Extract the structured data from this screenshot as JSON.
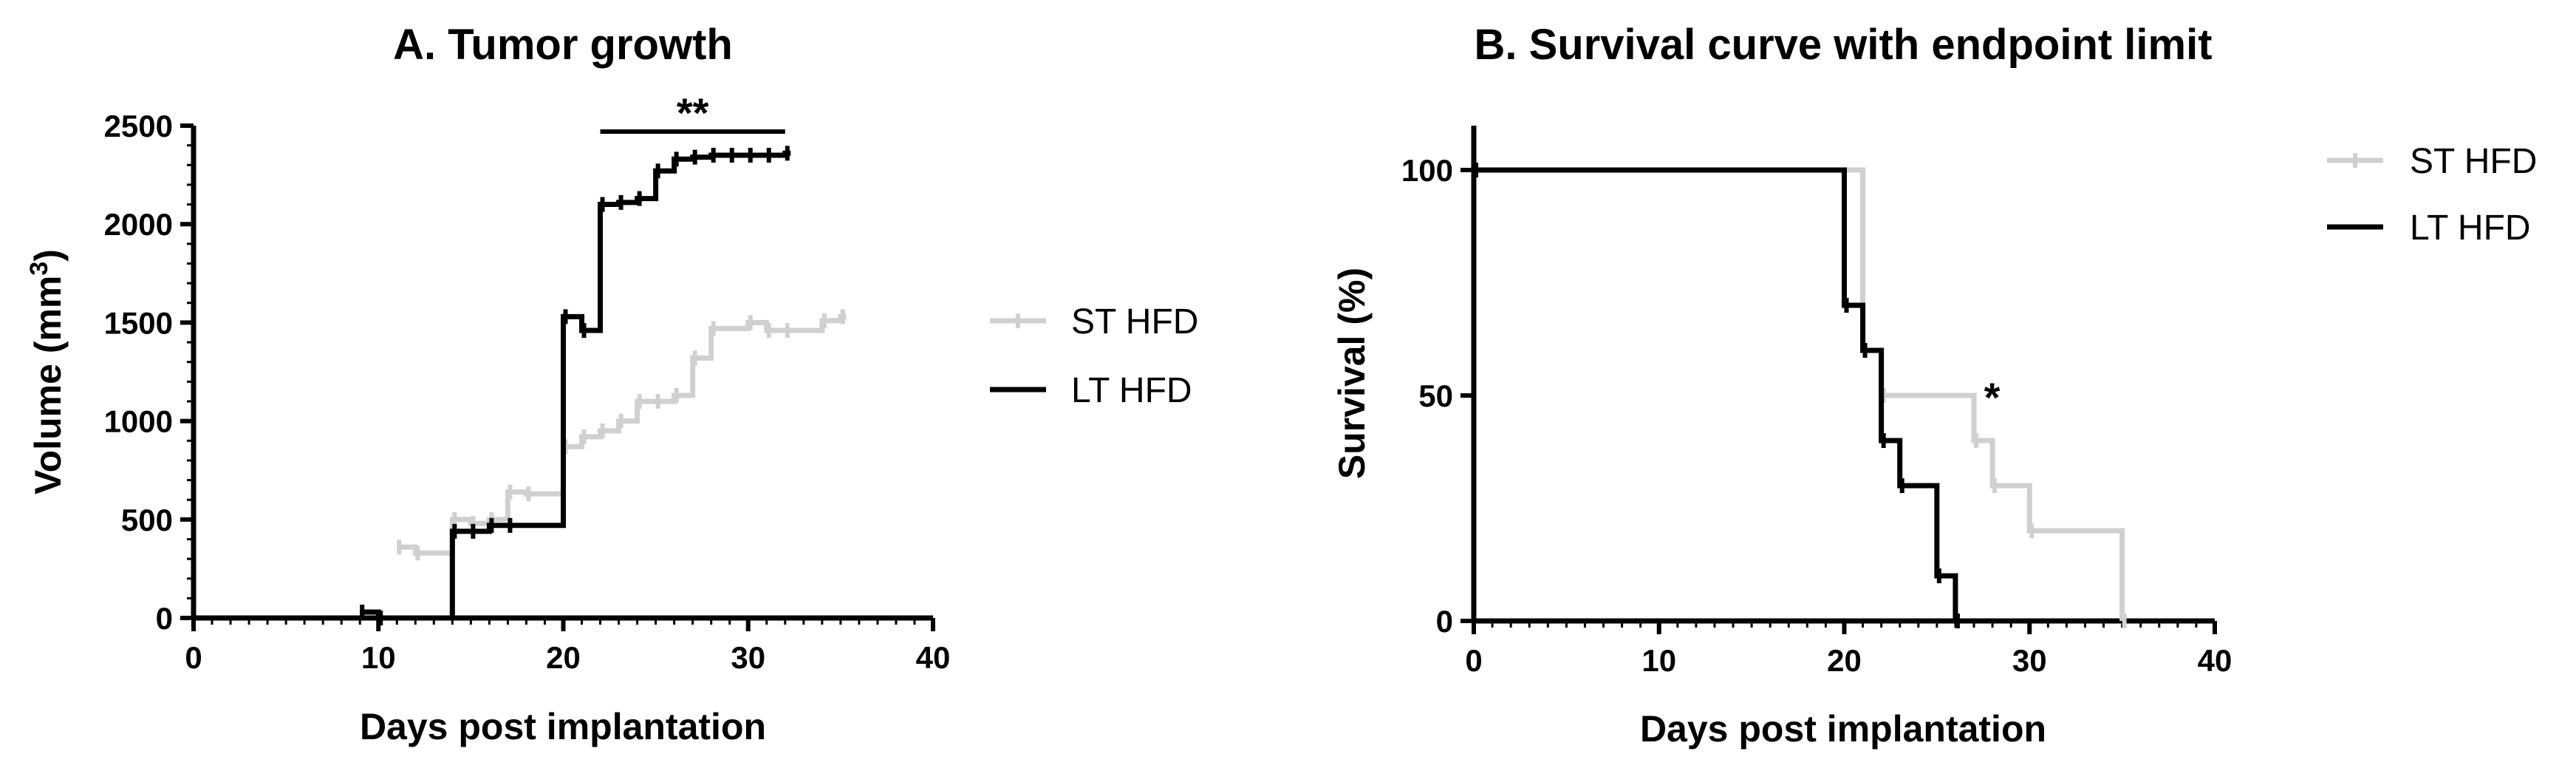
{
  "chart_data": [
    {
      "type": "line",
      "step": true,
      "title": "A. Tumor growth",
      "xlabel": "Days post implantation",
      "ylabel": "Volume (mm",
      "ylabel_sup": "3",
      "ylabel_close": ")",
      "xlim": [
        0,
        40
      ],
      "ylim": [
        0,
        2500
      ],
      "xticks": [
        "0",
        "10",
        "20",
        "30",
        "40"
      ],
      "yticks": [
        "0",
        "500",
        "1000",
        "1500",
        "2000",
        "2500"
      ],
      "legend_position": "right",
      "significance": {
        "label": "**",
        "x_start": 22,
        "x_end": 32,
        "y": 2470
      },
      "series": [
        {
          "name": "ST HFD",
          "color": "#d0d0d0",
          "x": [
            11,
            12,
            14,
            15,
            16,
            17,
            18,
            20,
            21,
            22,
            23,
            24,
            25,
            26,
            27,
            28,
            30,
            31,
            32,
            34,
            35
          ],
          "y": [
            360,
            330,
            500,
            480,
            500,
            640,
            630,
            870,
            920,
            950,
            1000,
            1100,
            1100,
            1130,
            1320,
            1470,
            1500,
            1460,
            1460,
            1510,
            1530
          ]
        },
        {
          "name": "LT HFD",
          "color": "#000000",
          "x": [
            9,
            10,
            14,
            15,
            16,
            17,
            20,
            21,
            22,
            23,
            24,
            25,
            26,
            27,
            28,
            29,
            30,
            31,
            32
          ],
          "y": [
            30,
            0,
            440,
            440,
            470,
            470,
            1530,
            1460,
            2100,
            2110,
            2130,
            2270,
            2330,
            2340,
            2350,
            2350,
            2350,
            2350,
            2360
          ]
        }
      ]
    },
    {
      "type": "line",
      "step": true,
      "title": "B. Survival curve with endpoint limit",
      "xlabel": "Days post implantation",
      "ylabel": "Survival (%)",
      "xlim": [
        0,
        40
      ],
      "ylim": [
        0,
        100
      ],
      "xticks": [
        "0",
        "10",
        "20",
        "30",
        "40"
      ],
      "yticks": [
        "0",
        "50",
        "100"
      ],
      "legend_position": "top-right",
      "significance": {
        "label": "*",
        "x": 27.5,
        "y": 50
      },
      "series": [
        {
          "name": "ST HFD",
          "color": "#d0d0d0",
          "x": [
            0,
            21,
            22,
            27,
            28,
            30,
            35
          ],
          "y": [
            100,
            60,
            50,
            40,
            30,
            20,
            0
          ]
        },
        {
          "name": "LT HFD",
          "color": "#000000",
          "x": [
            0,
            20,
            21,
            22,
            23,
            25,
            26
          ],
          "y": [
            100,
            70,
            60,
            40,
            30,
            10,
            0
          ]
        }
      ]
    }
  ]
}
